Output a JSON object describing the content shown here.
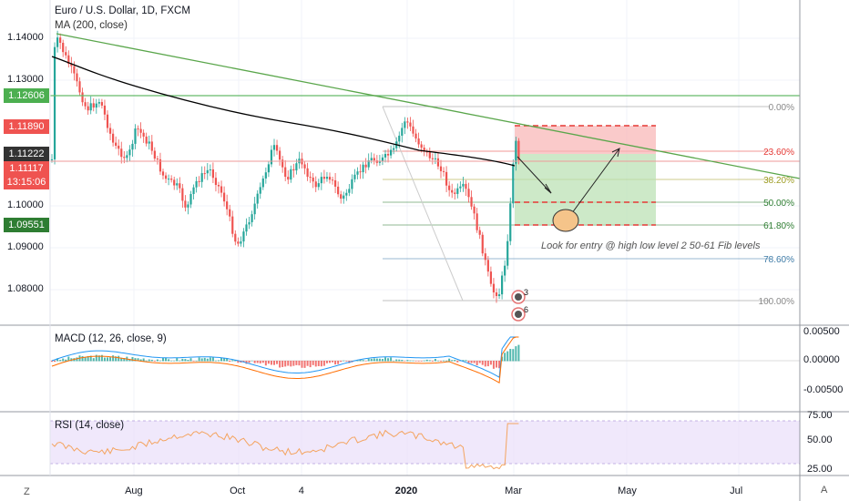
{
  "chart_title": "Euro / U.S. Dollar, 1D, FXCM",
  "indicator_ma": "MA (200, close)",
  "indicator_macd": "MACD (12, 26, close, 9)",
  "indicator_rsi": "RSI (14, close)",
  "corner_left": "Z",
  "corner_right": "A",
  "colors": {
    "up": "#26a69a",
    "down": "#ef5350",
    "ma": "#000000",
    "trend": "#5aa64b",
    "fib": "#aaaaaa"
  },
  "chart_data": {
    "type": "candlestick",
    "y_ticks": [
      "1.14000",
      "1.13000",
      "1.10000",
      "1.09000",
      "1.08000"
    ],
    "x_ticks": [
      "Aug",
      "Oct",
      "4",
      "2020",
      "Mar",
      "May",
      "Jul"
    ],
    "price_tags": [
      {
        "value": "1.12606",
        "color": "#4caf50"
      },
      {
        "value": "1.11890",
        "color": "#ef5350"
      },
      {
        "value": "1.11222",
        "color": "#333333"
      },
      {
        "value": "1.11117",
        "color": "#ef5350"
      },
      {
        "value": "13:15:06",
        "color": "#ef5350"
      },
      {
        "value": "1.09551",
        "color": "#2e7d32"
      }
    ],
    "fib_levels": [
      {
        "label": "0.00%",
        "color": "#888888"
      },
      {
        "label": "23.60%",
        "color": "#e53935"
      },
      {
        "label": "38.20%",
        "color": "#9e9d24"
      },
      {
        "label": "50.00%",
        "color": "#2e7d32"
      },
      {
        "label": "61.80%",
        "color": "#2e7d32"
      },
      {
        "label": "78.60%",
        "color": "#3d7aa6"
      },
      {
        "label": "100.00%",
        "color": "#888888"
      }
    ],
    "macd_ticks": [
      "0.00500",
      "0.00000",
      "-0.00500"
    ],
    "rsi_ticks": [
      "75.00",
      "50.00",
      "25.00"
    ],
    "annotation": "Look for entry @ high low level 2 50-61 Fib levels",
    "event_counts": [
      "3",
      "6"
    ]
  }
}
